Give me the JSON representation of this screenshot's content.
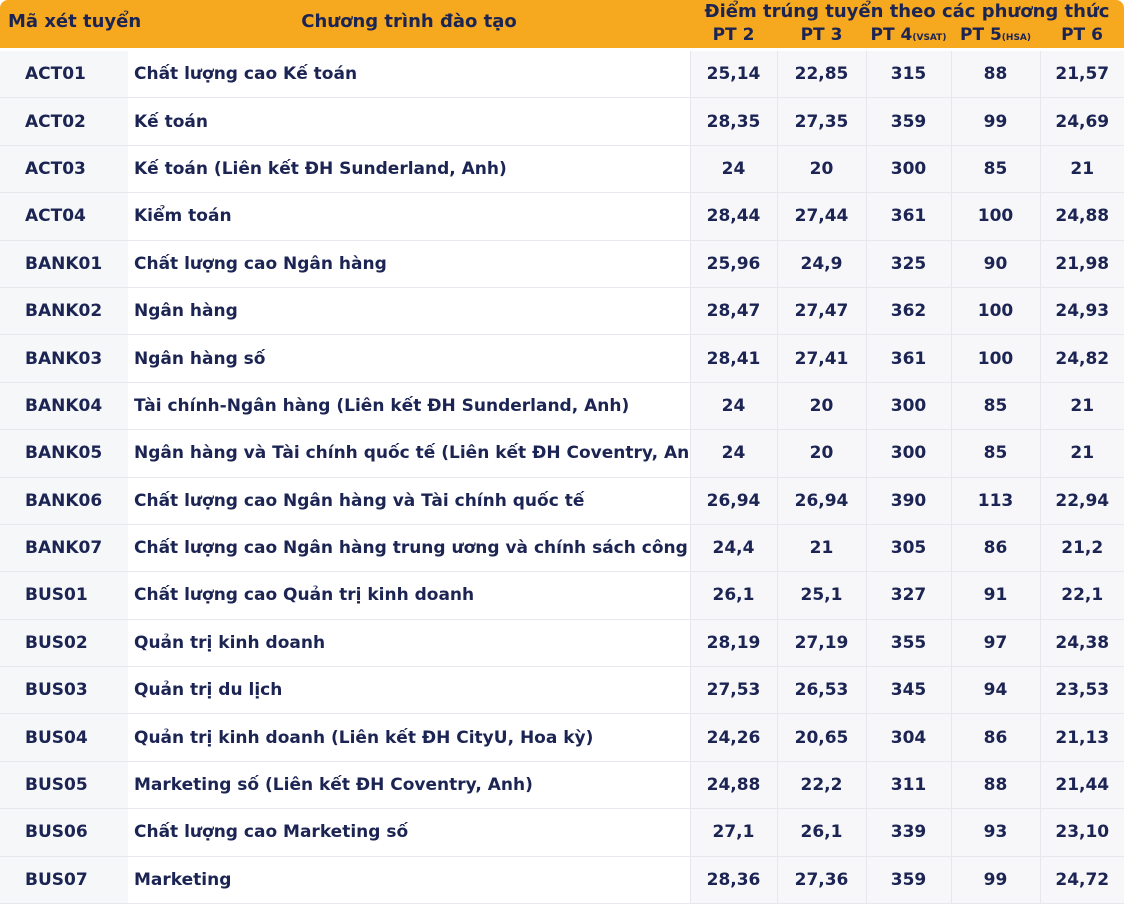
{
  "header": {
    "code": "Mã xét tuyển",
    "program": "Chương trình đào tạo",
    "scores_title": "Điểm trúng tuyển theo các phương thức",
    "methods": [
      {
        "name": "PT 2"
      },
      {
        "name": "PT 3"
      },
      {
        "name": "PT 4",
        "note": "(VSAT)"
      },
      {
        "name": "PT 5",
        "note": "(HSA)"
      },
      {
        "name": "PT 6"
      }
    ]
  },
  "table": {
    "rows": [
      [
        "ACT01",
        "Chất lượng cao Kế toán",
        "25,14",
        "22,85",
        "315",
        "88",
        "21,57"
      ],
      [
        "ACT02",
        "Kế toán",
        "28,35",
        "27,35",
        "359",
        "99",
        "24,69"
      ],
      [
        "ACT03",
        "Kế toán (Liên kết ĐH Sunderland, Anh)",
        "24",
        "20",
        "300",
        "85",
        "21"
      ],
      [
        "ACT04",
        "Kiểm toán",
        "28,44",
        "27,44",
        "361",
        "100",
        "24,88"
      ],
      [
        "BANK01",
        "Chất lượng cao Ngân hàng",
        "25,96",
        "24,9",
        "325",
        "90",
        "21,98"
      ],
      [
        "BANK02",
        "Ngân hàng",
        "28,47",
        "27,47",
        "362",
        "100",
        "24,93"
      ],
      [
        "BANK03",
        "Ngân hàng số",
        "28,41",
        "27,41",
        "361",
        "100",
        "24,82"
      ],
      [
        "BANK04",
        "Tài chính-Ngân hàng (Liên kết ĐH Sunderland, Anh)",
        "24",
        "20",
        "300",
        "85",
        "21"
      ],
      [
        "BANK05",
        "Ngân hàng và Tài chính quốc tế (Liên kết ĐH Coventry, Anh)",
        "24",
        "20",
        "300",
        "85",
        "21"
      ],
      [
        "BANK06",
        "Chất lượng cao Ngân hàng và Tài chính quốc tế",
        "26,94",
        "26,94",
        "390",
        "113",
        "22,94"
      ],
      [
        "BANK07",
        "Chất lượng cao Ngân hàng trung ương và chính sách công",
        "24,4",
        "21",
        "305",
        "86",
        "21,2"
      ],
      [
        "BUS01",
        "Chất lượng cao Quản trị kinh doanh",
        "26,1",
        "25,1",
        "327",
        "91",
        "22,1"
      ],
      [
        "BUS02",
        "Quản trị kinh doanh",
        "28,19",
        "27,19",
        "355",
        "97",
        "24,38"
      ],
      [
        "BUS03",
        "Quản trị du lịch",
        "27,53",
        "26,53",
        "345",
        "94",
        "23,53"
      ],
      [
        "BUS04",
        "Quản trị kinh doanh (Liên kết ĐH CityU, Hoa kỳ)",
        "24,26",
        "20,65",
        "304",
        "86",
        "21,13"
      ],
      [
        "BUS05",
        "Marketing số (Liên kết ĐH Coventry, Anh)",
        "24,88",
        "22,2",
        "311",
        "88",
        "21,44"
      ],
      [
        "BUS06",
        "Chất lượng cao Marketing số",
        "27,1",
        "26,1",
        "339",
        "93",
        "23,10"
      ],
      [
        "BUS07",
        "Marketing",
        "28,36",
        "27,36",
        "359",
        "99",
        "24,72"
      ]
    ]
  }
}
